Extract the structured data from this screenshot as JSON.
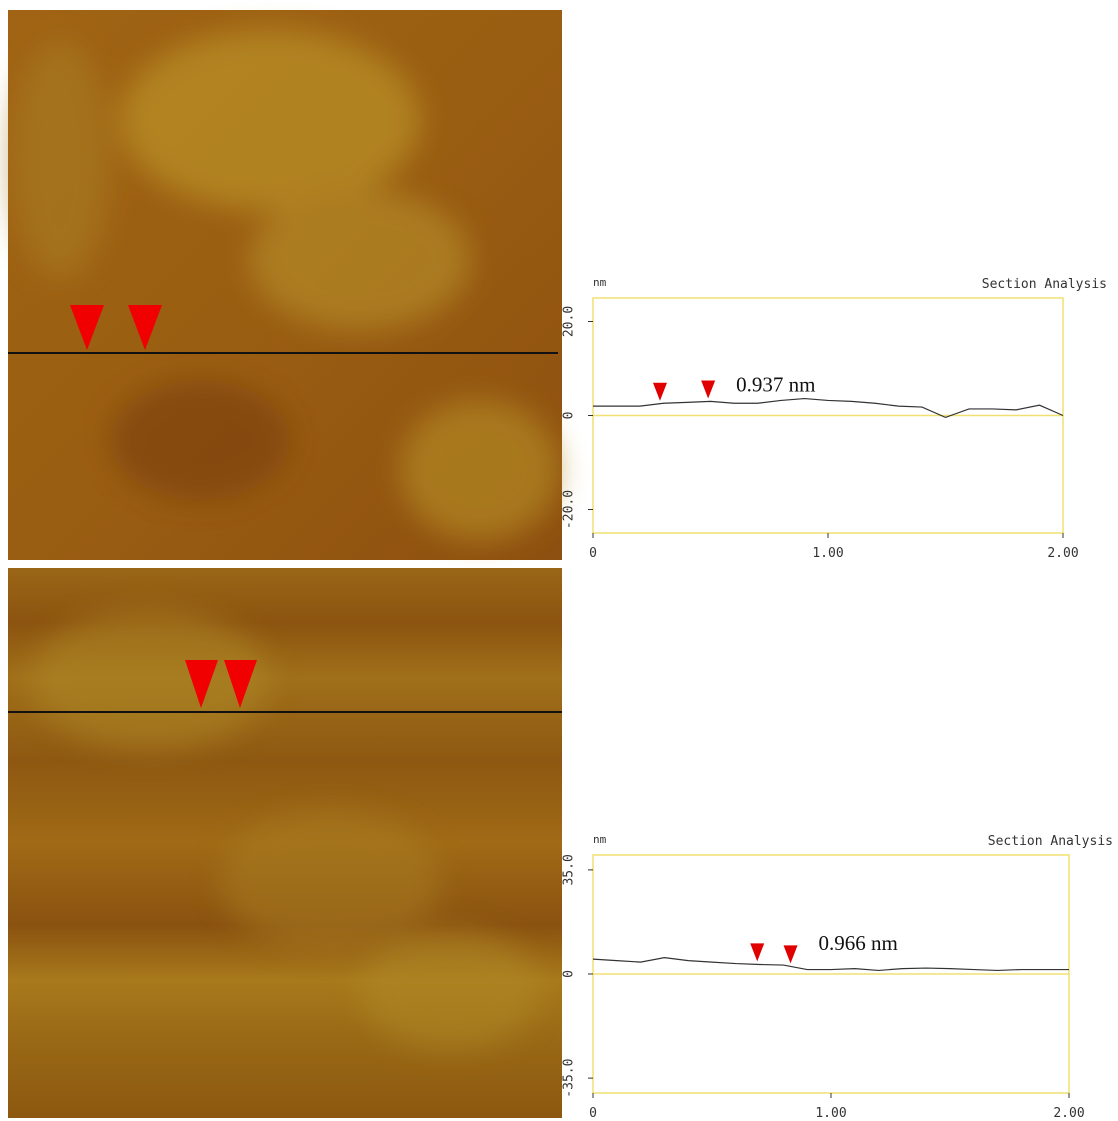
{
  "chart_data": [
    {
      "type": "line",
      "title": "Section Analysis",
      "ylabel": "nm",
      "annotation": "0.937 nm",
      "x": [
        0,
        0.1,
        0.2,
        0.3,
        0.4,
        0.5,
        0.6,
        0.7,
        0.8,
        0.9,
        1.0,
        1.1,
        1.2,
        1.3,
        1.4,
        1.5,
        1.6,
        1.7,
        1.8,
        1.9,
        2.0
      ],
      "values": [
        2.0,
        2.0,
        2.0,
        2.6,
        2.8,
        3.0,
        2.6,
        2.6,
        3.2,
        3.6,
        3.2,
        3.0,
        2.6,
        2.0,
        1.8,
        -0.4,
        1.4,
        1.4,
        1.2,
        2.2,
        0.0
      ],
      "color": "#333333",
      "cursor_x": [
        0.285,
        0.49
      ],
      "cursor_color": "#e00000",
      "xlim": [
        0,
        2
      ],
      "xticks": [
        0,
        {
          "value": 1,
          "label": "1.00"
        },
        {
          "value": 2,
          "label": "2.00"
        }
      ],
      "ylim": [
        -25,
        25
      ],
      "yticks": [
        {
          "value": 20,
          "label": "20.0"
        },
        0,
        {
          "value": -20,
          "label": "-20.0"
        }
      ],
      "zero_line": true
    },
    {
      "type": "line",
      "title": "Section Analysis",
      "ylabel": "nm",
      "annotation": "0.966 nm",
      "x": [
        0,
        0.1,
        0.2,
        0.3,
        0.4,
        0.5,
        0.6,
        0.7,
        0.8,
        0.9,
        1.0,
        1.1,
        1.2,
        1.3,
        1.4,
        1.5,
        1.6,
        1.7,
        1.8,
        1.9,
        2.0
      ],
      "values": [
        5.0,
        4.5,
        4.0,
        5.5,
        4.5,
        4.0,
        3.5,
        3.2,
        3.0,
        1.5,
        1.5,
        1.8,
        1.2,
        1.8,
        2.0,
        1.8,
        1.5,
        1.2,
        1.5,
        1.5,
        1.5
      ],
      "color": "#333333",
      "cursor_x": [
        0.69,
        0.83
      ],
      "cursor_color": "#e00000",
      "xlim": [
        0,
        2
      ],
      "xticks": [
        0,
        {
          "value": 1,
          "label": "1.00"
        },
        {
          "value": 2,
          "label": "2.00"
        }
      ],
      "ylim": [
        -40,
        40
      ],
      "yticks": [
        {
          "value": 35,
          "label": "35.0"
        },
        0,
        {
          "value": -35,
          "label": "-35.0"
        }
      ],
      "zero_line": true
    }
  ]
}
